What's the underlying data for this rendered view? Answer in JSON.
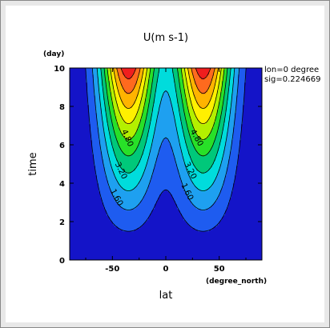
{
  "chart_data": {
    "type": "contour",
    "title": "U(m s-1)",
    "x_title": "lat",
    "x_units": "(degree_north)",
    "y_title": "time",
    "y_units": "(day)",
    "info_lines": [
      "lon=0 degree",
      "sig=0.224669"
    ],
    "xlim": [
      -90,
      90
    ],
    "ylim": [
      0,
      10
    ],
    "x_ticks": [
      -50,
      0,
      50
    ],
    "x_tick_labels": [
      "-50",
      "0",
      "50"
    ],
    "y_ticks": [
      0,
      2,
      4,
      6,
      8,
      10
    ],
    "y_tick_labels": [
      "0",
      "2",
      "4",
      "6",
      "8",
      "10"
    ],
    "contour_interval": 0.8,
    "levels": [
      0,
      0.8,
      1.6,
      2.4,
      3.2,
      4.0,
      4.8,
      5.6,
      6.4,
      7.2,
      8.0
    ],
    "jet_centers_lat": [
      -35,
      35
    ],
    "labeled_contours": [
      "1.60",
      "3.20",
      "4.80",
      "1.60",
      "3.20",
      "4.80"
    ],
    "colors": [
      "#1414c8",
      "#1e5cf0",
      "#1ea0f0",
      "#00dcdc",
      "#00c87a",
      "#28e028",
      "#b4f000",
      "#fff000",
      "#ffb400",
      "#ff6a1e",
      "#f01e1e",
      "#ff9aa8"
    ]
  }
}
